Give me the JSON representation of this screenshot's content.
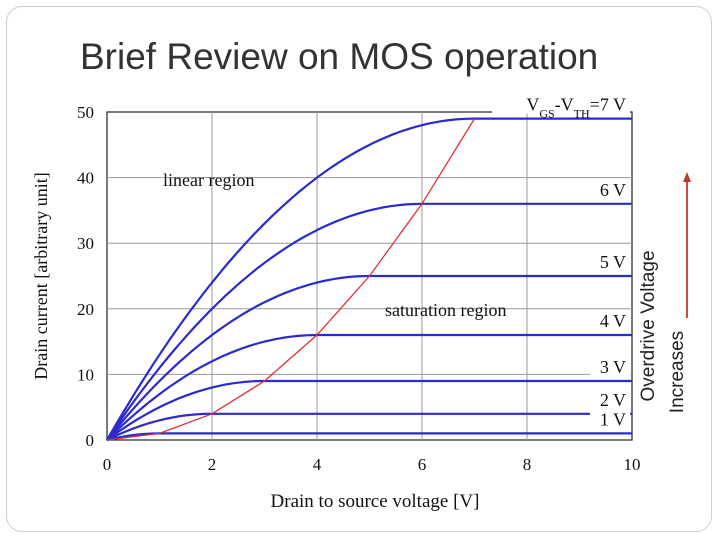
{
  "slide": {
    "title": "Brief Review on MOS operation"
  },
  "side_annotation": {
    "line1": "Overdrive Voltage",
    "line2": "Increases",
    "arrow_color": "#c0392b"
  },
  "chart_data": {
    "type": "line",
    "title": "",
    "xlabel": "Drain to source voltage [V]",
    "ylabel": "Drain current [arbitrary unit]",
    "xlim": [
      0,
      10
    ],
    "ylim": [
      0,
      50
    ],
    "xticks": [
      0,
      2,
      4,
      6,
      8,
      10
    ],
    "yticks": [
      0,
      10,
      20,
      30,
      40,
      50
    ],
    "grid": true,
    "curve_color": "#2a2ad0",
    "boundary_color": "#e03030",
    "series": [
      {
        "label": "1 V",
        "vov": 1,
        "label_parts": [
          "1 V"
        ]
      },
      {
        "label": "2 V",
        "vov": 2,
        "label_parts": [
          "2 V"
        ]
      },
      {
        "label": "3 V",
        "vov": 3,
        "label_parts": [
          "3 V"
        ]
      },
      {
        "label": "4 V",
        "vov": 4,
        "label_parts": [
          "4 V"
        ]
      },
      {
        "label": "5 V",
        "vov": 5,
        "label_parts": [
          "5 V"
        ]
      },
      {
        "label": "6 V",
        "vov": 6,
        "label_parts": [
          "6 V"
        ]
      },
      {
        "label": "VGS-VTH=7 V",
        "vov": 7,
        "label_parts": [
          "V",
          "GS",
          "-V",
          "TH",
          "=7 V"
        ]
      }
    ],
    "boundary": {
      "name": "saturation boundary",
      "x": [
        0,
        1,
        2,
        3,
        4,
        5,
        6,
        7
      ],
      "y": [
        0,
        1,
        4,
        9,
        16,
        25,
        36,
        49
      ]
    },
    "annotations": [
      {
        "text": "linear region"
      },
      {
        "text": "saturation region"
      }
    ]
  }
}
